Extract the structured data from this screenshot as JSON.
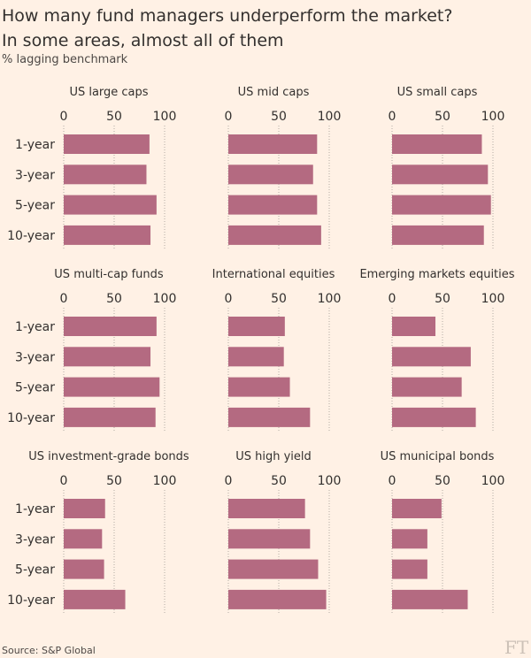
{
  "title_line1": "How many fund managers underperform the market?",
  "title_line2": "In some areas, almost all of them",
  "subtitle": "% lagging benchmark",
  "source": "Source: S&P Global",
  "logo": "FT",
  "colors": {
    "bar": "#b46a81",
    "background": "#fff1e5",
    "grid": "#b3aaa3"
  },
  "chart_data": [
    {
      "type": "bar",
      "orientation": "horizontal",
      "title": "US large caps",
      "categories": [
        "1-year",
        "3-year",
        "5-year",
        "10-year"
      ],
      "values": [
        85,
        82,
        92,
        86
      ],
      "xlim": [
        0,
        100
      ],
      "xticks": [
        0,
        50,
        100
      ]
    },
    {
      "type": "bar",
      "orientation": "horizontal",
      "title": "US mid caps",
      "categories": [
        "1-year",
        "3-year",
        "5-year",
        "10-year"
      ],
      "values": [
        88,
        84,
        88,
        92
      ],
      "xlim": [
        0,
        100
      ],
      "xticks": [
        0,
        50,
        100
      ]
    },
    {
      "type": "bar",
      "orientation": "horizontal",
      "title": "US small caps",
      "categories": [
        "1-year",
        "3-year",
        "5-year",
        "10-year"
      ],
      "values": [
        89,
        95,
        98,
        91
      ],
      "xlim": [
        0,
        100
      ],
      "xticks": [
        0,
        50,
        100
      ]
    },
    {
      "type": "bar",
      "orientation": "horizontal",
      "title": "US multi-cap funds",
      "categories": [
        "1-year",
        "3-year",
        "5-year",
        "10-year"
      ],
      "values": [
        92,
        86,
        95,
        91
      ],
      "xlim": [
        0,
        100
      ],
      "xticks": [
        0,
        50,
        100
      ]
    },
    {
      "type": "bar",
      "orientation": "horizontal",
      "title": "International equities",
      "categories": [
        "1-year",
        "3-year",
        "5-year",
        "10-year"
      ],
      "values": [
        56,
        55,
        61,
        81
      ],
      "xlim": [
        0,
        100
      ],
      "xticks": [
        0,
        50,
        100
      ]
    },
    {
      "type": "bar",
      "orientation": "horizontal",
      "title": "Emerging markets equities",
      "categories": [
        "1-year",
        "3-year",
        "5-year",
        "10-year"
      ],
      "values": [
        43,
        78,
        69,
        83
      ],
      "xlim": [
        0,
        100
      ],
      "xticks": [
        0,
        50,
        100
      ]
    },
    {
      "type": "bar",
      "orientation": "horizontal",
      "title": "US investment-grade bonds",
      "categories": [
        "1-year",
        "3-year",
        "5-year",
        "10-year"
      ],
      "values": [
        41,
        38,
        40,
        61
      ],
      "xlim": [
        0,
        100
      ],
      "xticks": [
        0,
        50,
        100
      ]
    },
    {
      "type": "bar",
      "orientation": "horizontal",
      "title": "US high yield",
      "categories": [
        "1-year",
        "3-year",
        "5-year",
        "10-year"
      ],
      "values": [
        76,
        81,
        89,
        97
      ],
      "xlim": [
        0,
        100
      ],
      "xticks": [
        0,
        50,
        100
      ]
    },
    {
      "type": "bar",
      "orientation": "horizontal",
      "title": "US municipal bonds",
      "categories": [
        "1-year",
        "3-year",
        "5-year",
        "10-year"
      ],
      "values": [
        49,
        35,
        35,
        75
      ],
      "xlim": [
        0,
        100
      ],
      "xticks": [
        0,
        50,
        100
      ]
    }
  ]
}
